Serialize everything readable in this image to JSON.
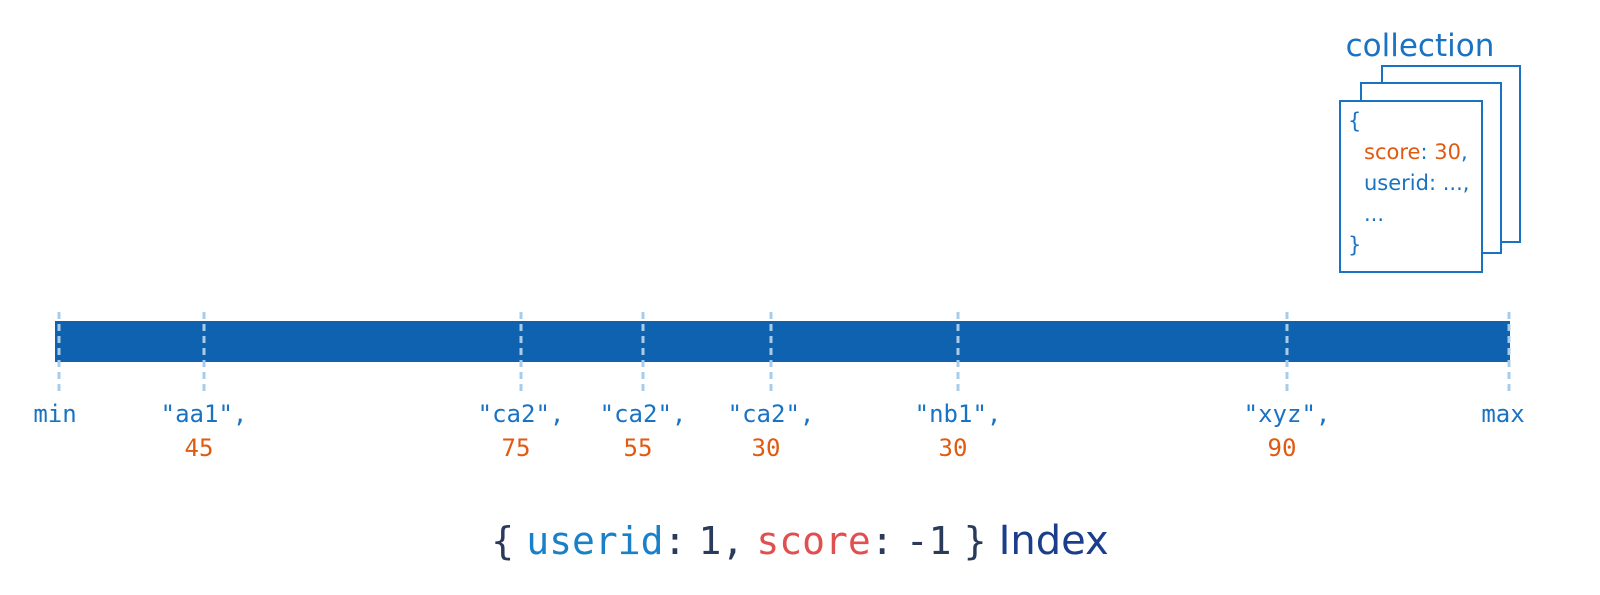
{
  "collection": {
    "title": "collection",
    "document": {
      "open": "{",
      "score_key": "score",
      "score_colon": ":",
      "score_value": 30,
      "score_comma": ",",
      "userid_line": "userid: ...,",
      "ellipsis": "...",
      "close": "}"
    }
  },
  "index": {
    "min": "min",
    "max": "max",
    "entries": [
      {
        "key": "\"aa1\",",
        "score": 45
      },
      {
        "key": "\"ca2\",",
        "score": 75
      },
      {
        "key": "\"ca2\",",
        "score": 55
      },
      {
        "key": "\"ca2\",",
        "score": 30
      },
      {
        "key": "\"nb1\",",
        "score": 30
      },
      {
        "key": "\"xyz\",",
        "score": 90
      }
    ]
  },
  "caption": {
    "open": "{",
    "userid_key": "userid",
    "userid_colon": ":",
    "userid_value": 1,
    "comma": ",",
    "score_key": "score",
    "score_colon": ":",
    "score_value": -1,
    "close": "}",
    "label": "Index"
  }
}
